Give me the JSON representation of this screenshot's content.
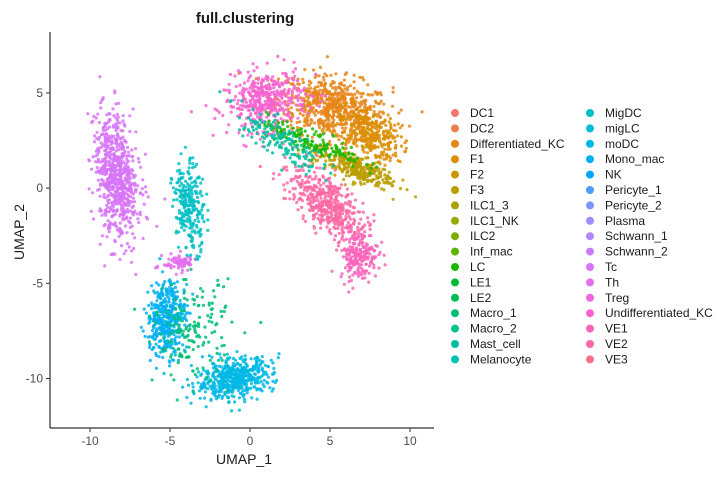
{
  "chart_data": {
    "type": "scatter",
    "title": "full.clustering",
    "xlabel": "UMAP_1",
    "ylabel": "UMAP_2",
    "xlim": [
      -12.5,
      11.5
    ],
    "ylim": [
      -12.6,
      8.2
    ],
    "x_ticks": [
      -10,
      -5,
      0,
      5,
      10
    ],
    "y_ticks": [
      5,
      0,
      -5,
      -10
    ],
    "x_tick_labels": [
      "-10",
      "-5",
      "0",
      "5",
      "10"
    ],
    "y_tick_labels": [
      "5",
      "0",
      "-5",
      "-10"
    ],
    "grid": false,
    "legend_position": "right",
    "legend_columns": 2,
    "series": [
      {
        "name": "DC1",
        "color": "#F8766D"
      },
      {
        "name": "DC2",
        "color": "#F07E4C"
      },
      {
        "name": "Differentiated_KC",
        "color": "#E6861A"
      },
      {
        "name": "F1",
        "color": "#DA8E00"
      },
      {
        "name": "F2",
        "color": "#CC9600"
      },
      {
        "name": "F3",
        "color": "#BC9D00"
      },
      {
        "name": "ILC1_3",
        "color": "#AAA300"
      },
      {
        "name": "ILC1_NK",
        "color": "#95A900"
      },
      {
        "name": "ILC2",
        "color": "#7CAE00"
      },
      {
        "name": "Inf_mac",
        "color": "#5BB300"
      },
      {
        "name": "LC",
        "color": "#1BB700"
      },
      {
        "name": "LE1",
        "color": "#00BA38"
      },
      {
        "name": "LE2",
        "color": "#00BC59"
      },
      {
        "name": "Macro_1",
        "color": "#00BE74"
      },
      {
        "name": "Macro_2",
        "color": "#00C08B"
      },
      {
        "name": "Mast_cell",
        "color": "#00C0A0"
      },
      {
        "name": "Melanocyte",
        "color": "#00C0B4"
      },
      {
        "name": "MigDC",
        "color": "#00BFC4"
      },
      {
        "name": "migLC",
        "color": "#00BCD6"
      },
      {
        "name": "moDC",
        "color": "#00B8E5"
      },
      {
        "name": "Mono_mac",
        "color": "#00B0F2"
      },
      {
        "name": "NK",
        "color": "#00A6FD"
      },
      {
        "name": "Pericyte_1",
        "color": "#4A9DFF"
      },
      {
        "name": "Pericyte_2",
        "color": "#7D96FF"
      },
      {
        "name": "Plasma",
        "color": "#9B8DFF"
      },
      {
        "name": "Schwann_1",
        "color": "#B385FF"
      },
      {
        "name": "Schwann_2",
        "color": "#C77CFF"
      },
      {
        "name": "Tc",
        "color": "#D774F8"
      },
      {
        "name": "Th",
        "color": "#E46EED"
      },
      {
        "name": "Treg",
        "color": "#EF67E0"
      },
      {
        "name": "Undifferentiated_KC",
        "color": "#F763CF"
      },
      {
        "name": "VE1",
        "color": "#FC64BB"
      },
      {
        "name": "VE2",
        "color": "#FE68A5"
      },
      {
        "name": "VE3",
        "color": "#FD6E8C"
      }
    ],
    "clusters": [
      {
        "label": "Differentiated_KC",
        "color": "#E6861A",
        "cx": 5.2,
        "cy": 4.2,
        "sx": 3.5,
        "sy": 1.6,
        "rot": -0.15,
        "n": 650
      },
      {
        "label": "F1",
        "color": "#DA8E00",
        "cx": 7.5,
        "cy": 2.8,
        "sx": 2.0,
        "sy": 1.2,
        "rot": -0.4,
        "n": 280
      },
      {
        "label": "Undifferentiated_KC",
        "color": "#F763CF",
        "cx": 1.0,
        "cy": 4.6,
        "sx": 2.5,
        "sy": 1.5,
        "rot": 0.15,
        "n": 420
      },
      {
        "label": "VE2",
        "color": "#FE68A5",
        "cx": 4.8,
        "cy": -0.8,
        "sx": 2.7,
        "sy": 1.3,
        "rot": -0.65,
        "n": 470
      },
      {
        "label": "VE1",
        "color": "#FC64BB",
        "cx": 6.8,
        "cy": -3.5,
        "sx": 1.2,
        "sy": 1.3,
        "rot": 0.0,
        "n": 200
      },
      {
        "label": "F3",
        "color": "#BC9D00",
        "cx": 6.5,
        "cy": 1.1,
        "sx": 2.5,
        "sy": 0.7,
        "rot": -0.3,
        "n": 300
      },
      {
        "label": "LC",
        "color": "#1BB700",
        "cx": 4.0,
        "cy": 2.4,
        "sx": 3.2,
        "sy": 0.6,
        "rot": -0.3,
        "n": 160
      },
      {
        "label": "Mast_cell",
        "color": "#00C0A0",
        "cx": 1.8,
        "cy": 2.6,
        "sx": 3.0,
        "sy": 0.9,
        "rot": -0.5,
        "n": 150
      },
      {
        "label": "Tc",
        "color": "#D774F8",
        "cx": -8.3,
        "cy": 0.5,
        "sx": 1.3,
        "sy": 3.3,
        "rot": 0.15,
        "n": 700
      },
      {
        "label": "Th",
        "color": "#E46EED",
        "cx": -4.4,
        "cy": -3.9,
        "sx": 1.0,
        "sy": 0.45,
        "rot": 0.0,
        "n": 80
      },
      {
        "label": "MigDC",
        "color": "#00BFC4",
        "cx": -3.8,
        "cy": -1.0,
        "sx": 0.9,
        "sy": 2.3,
        "rot": 0.1,
        "n": 250
      },
      {
        "label": "Mono_mac",
        "color": "#00B0F2",
        "cx": -5.2,
        "cy": -6.8,
        "sx": 1.2,
        "sy": 2.0,
        "rot": -0.1,
        "n": 400
      },
      {
        "label": "moDC",
        "color": "#00B8E5",
        "cx": -1.0,
        "cy": -10.0,
        "sx": 2.4,
        "sy": 1.0,
        "rot": 0.15,
        "n": 520
      },
      {
        "label": "Macro_1",
        "color": "#00BE74",
        "cx": -3.6,
        "cy": -7.5,
        "sx": 2.4,
        "sy": 2.6,
        "rot": 0.0,
        "n": 160
      }
    ]
  }
}
